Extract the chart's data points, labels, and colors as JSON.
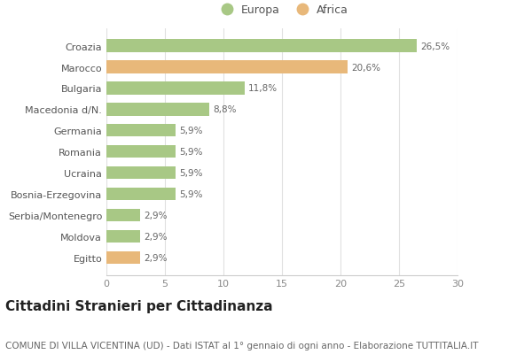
{
  "categories": [
    "Croazia",
    "Marocco",
    "Bulgaria",
    "Macedonia d/N.",
    "Germania",
    "Romania",
    "Ucraina",
    "Bosnia-Erzegovina",
    "Serbia/Montenegro",
    "Moldova",
    "Egitto"
  ],
  "values": [
    26.5,
    20.6,
    11.8,
    8.8,
    5.9,
    5.9,
    5.9,
    5.9,
    2.9,
    2.9,
    2.9
  ],
  "labels": [
    "26,5%",
    "20,6%",
    "11,8%",
    "8,8%",
    "5,9%",
    "5,9%",
    "5,9%",
    "5,9%",
    "2,9%",
    "2,9%",
    "2,9%"
  ],
  "colors": [
    "#a8c885",
    "#e8b87a",
    "#a8c885",
    "#a8c885",
    "#a8c885",
    "#a8c885",
    "#a8c885",
    "#a8c885",
    "#a8c885",
    "#a8c885",
    "#e8b87a"
  ],
  "europa_color": "#a8c885",
  "africa_color": "#e8b87a",
  "xlim": [
    0,
    30
  ],
  "xticks": [
    0,
    5,
    10,
    15,
    20,
    25,
    30
  ],
  "title": "Cittadini Stranieri per Cittadinanza",
  "subtitle": "COMUNE DI VILLA VICENTINA (UD) - Dati ISTAT al 1° gennaio di ogni anno - Elaborazione TUTTITALIA.IT",
  "background_color": "#ffffff",
  "bar_background": "#ffffff",
  "title_fontsize": 11,
  "subtitle_fontsize": 7.5,
  "legend_fontsize": 9,
  "tick_fontsize": 8,
  "label_fontsize": 7.5
}
